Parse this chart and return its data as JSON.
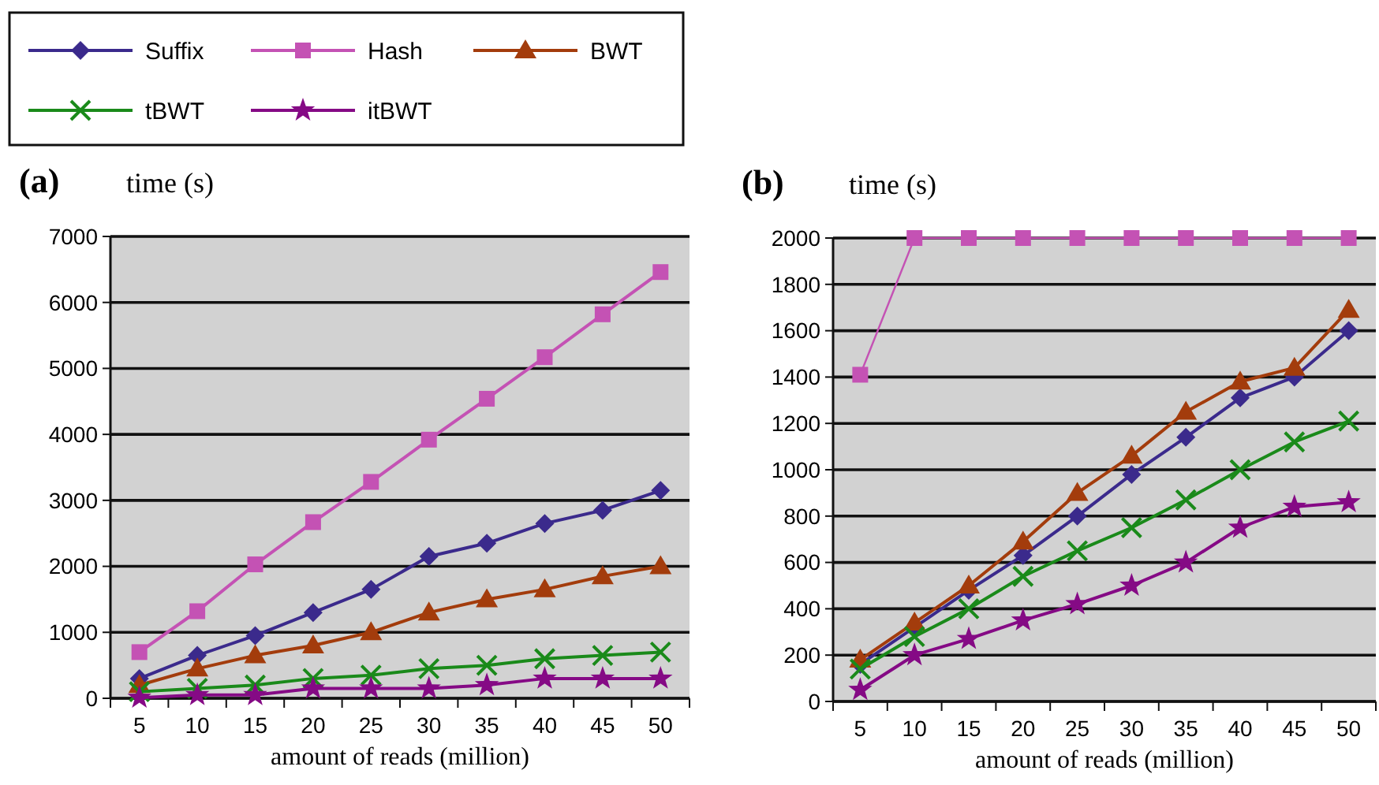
{
  "chart_data": [
    {
      "type": "line",
      "title": "(a)",
      "ylabel": "time (s)",
      "xlabel": "amount of reads (million)",
      "categories": [
        "5",
        "10",
        "15",
        "20",
        "25",
        "30",
        "35",
        "40",
        "45",
        "50"
      ],
      "ylim": [
        0,
        7000
      ],
      "yticks": [
        0,
        1000,
        2000,
        3000,
        4000,
        5000,
        6000,
        7000
      ],
      "grid": "y",
      "legend": "top left",
      "series": [
        {
          "name": "Suffix",
          "color": "#3b2a8c",
          "marker": "diamond",
          "values": [
            300,
            650,
            950,
            1300,
            1650,
            2150,
            2350,
            2650,
            2850,
            3150
          ]
        },
        {
          "name": "Hash",
          "color": "#c452b4",
          "marker": "square",
          "values": [
            700,
            1320,
            2030,
            2670,
            3280,
            3920,
            4540,
            5170,
            5820,
            6460
          ]
        },
        {
          "name": "BWT",
          "color": "#a33c0c",
          "marker": "triangle",
          "values": [
            200,
            450,
            650,
            800,
            1000,
            1300,
            1500,
            1650,
            1850,
            2000
          ]
        },
        {
          "name": "tBWT",
          "color": "#1a8a1a",
          "marker": "cross",
          "values": [
            100,
            150,
            200,
            300,
            350,
            450,
            500,
            600,
            650,
            700
          ]
        },
        {
          "name": "itBWT",
          "color": "#850a85",
          "marker": "star",
          "values": [
            10,
            50,
            50,
            150,
            150,
            150,
            200,
            300,
            300,
            300
          ]
        }
      ]
    },
    {
      "type": "line",
      "title": "(b)",
      "ylabel": "time (s)",
      "xlabel": "amount of reads (million)",
      "categories": [
        "5",
        "10",
        "15",
        "20",
        "25",
        "30",
        "35",
        "40",
        "45",
        "50"
      ],
      "ylim": [
        0,
        2000
      ],
      "yticks": [
        0,
        200,
        400,
        600,
        800,
        1000,
        1200,
        1400,
        1600,
        1800,
        2000
      ],
      "grid": "y",
      "legend": false,
      "series": [
        {
          "color": "#3b2a8c",
          "marker": "diamond",
          "values": [
            160,
            320,
            480,
            630,
            800,
            980,
            1140,
            1310,
            1400,
            1600
          ]
        },
        {
          "color": "#c452b4",
          "marker": "square",
          "values": [
            1410,
            2000,
            2000,
            2000,
            2000,
            2000,
            2000,
            2000,
            2000,
            2000
          ]
        },
        {
          "color": "#a33c0c",
          "marker": "triangle",
          "values": [
            180,
            340,
            500,
            690,
            900,
            1060,
            1250,
            1380,
            1440,
            1690
          ]
        },
        {
          "color": "#1a8a1a",
          "marker": "cross",
          "values": [
            140,
            280,
            400,
            540,
            650,
            750,
            870,
            1000,
            1120,
            1210
          ]
        },
        {
          "color": "#850a85",
          "marker": "star",
          "values": [
            50,
            200,
            270,
            350,
            420,
            500,
            600,
            750,
            840,
            860
          ]
        }
      ]
    }
  ]
}
